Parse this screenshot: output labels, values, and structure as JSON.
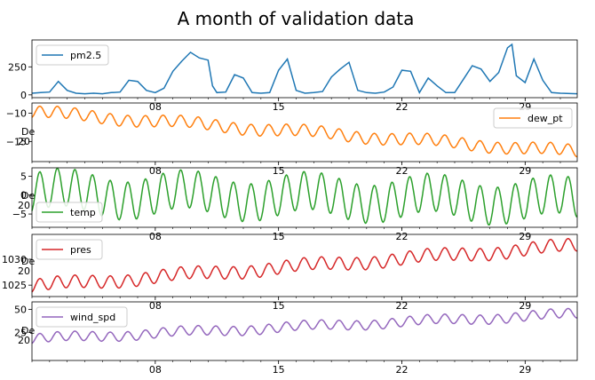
{
  "chart_data": {
    "type": "line",
    "title": "A month of validation data",
    "x_axis": {
      "type": "date",
      "range": [
        "2014-12-01",
        "2014-12-31T23:00"
      ],
      "tick_labels": [
        "08",
        "15",
        "22",
        "29"
      ],
      "tick_dates": [
        "2014-12-08",
        "2014-12-15",
        "2014-12-22",
        "2014-12-29"
      ],
      "overlap_label_fragments": [
        "De",
        "20"
      ]
    },
    "grid": false,
    "subplots": [
      {
        "name": "pm2.5",
        "color": "#1f77b4",
        "legend": "top-left",
        "ylim": [
          -25,
          490
        ],
        "yticks": [
          0,
          250
        ],
        "ytick_labels": [
          "0",
          "250"
        ],
        "points": [
          [
            "2014-12-01T00:00",
            15
          ],
          [
            "2014-12-01T12:00",
            20
          ],
          [
            "2014-12-02T00:00",
            25
          ],
          [
            "2014-12-02T12:00",
            120
          ],
          [
            "2014-12-03T00:00",
            40
          ],
          [
            "2014-12-03T12:00",
            15
          ],
          [
            "2014-12-04T00:00",
            10
          ],
          [
            "2014-12-04T12:00",
            15
          ],
          [
            "2014-12-05T00:00",
            10
          ],
          [
            "2014-12-05T12:00",
            20
          ],
          [
            "2014-12-06T00:00",
            25
          ],
          [
            "2014-12-06T12:00",
            130
          ],
          [
            "2014-12-07T00:00",
            120
          ],
          [
            "2014-12-07T12:00",
            40
          ],
          [
            "2014-12-08T00:00",
            20
          ],
          [
            "2014-12-08T12:00",
            60
          ],
          [
            "2014-12-09T00:00",
            210
          ],
          [
            "2014-12-09T12:00",
            300
          ],
          [
            "2014-12-10T00:00",
            380
          ],
          [
            "2014-12-10T12:00",
            330
          ],
          [
            "2014-12-11T00:00",
            310
          ],
          [
            "2014-12-11T06:00",
            80
          ],
          [
            "2014-12-11T12:00",
            20
          ],
          [
            "2014-12-12T00:00",
            25
          ],
          [
            "2014-12-12T12:00",
            180
          ],
          [
            "2014-12-13T00:00",
            150
          ],
          [
            "2014-12-13T12:00",
            20
          ],
          [
            "2014-12-14T00:00",
            15
          ],
          [
            "2014-12-14T12:00",
            20
          ],
          [
            "2014-12-15T00:00",
            220
          ],
          [
            "2014-12-15T12:00",
            320
          ],
          [
            "2014-12-16T00:00",
            40
          ],
          [
            "2014-12-16T12:00",
            15
          ],
          [
            "2014-12-17T00:00",
            20
          ],
          [
            "2014-12-17T12:00",
            30
          ],
          [
            "2014-12-18T00:00",
            160
          ],
          [
            "2014-12-18T12:00",
            230
          ],
          [
            "2014-12-19T00:00",
            290
          ],
          [
            "2014-12-19T12:00",
            40
          ],
          [
            "2014-12-20T00:00",
            20
          ],
          [
            "2014-12-20T12:00",
            15
          ],
          [
            "2014-12-21T00:00",
            25
          ],
          [
            "2014-12-21T12:00",
            70
          ],
          [
            "2014-12-22T00:00",
            220
          ],
          [
            "2014-12-22T12:00",
            210
          ],
          [
            "2014-12-23T00:00",
            20
          ],
          [
            "2014-12-23T12:00",
            150
          ],
          [
            "2014-12-24T00:00",
            80
          ],
          [
            "2014-12-24T12:00",
            20
          ],
          [
            "2014-12-25T00:00",
            20
          ],
          [
            "2014-12-25T12:00",
            140
          ],
          [
            "2014-12-26T00:00",
            260
          ],
          [
            "2014-12-26T12:00",
            230
          ],
          [
            "2014-12-27T00:00",
            120
          ],
          [
            "2014-12-27T12:00",
            200
          ],
          [
            "2014-12-28T00:00",
            420
          ],
          [
            "2014-12-28T06:00",
            450
          ],
          [
            "2014-12-28T12:00",
            170
          ],
          [
            "2014-12-29T00:00",
            110
          ],
          [
            "2014-12-29T12:00",
            320
          ],
          [
            "2014-12-30T00:00",
            130
          ],
          [
            "2014-12-30T12:00",
            20
          ],
          [
            "2014-12-31T00:00",
            15
          ],
          [
            "2014-12-31T23:00",
            10
          ]
        ]
      },
      {
        "name": "dew_pt",
        "color": "#ff7f0e",
        "legend": "top-right",
        "ylim": [
          -18.5,
          -8.2
        ],
        "yticks": [
          -10,
          -15
        ],
        "ytick_labels": [
          "−10",
          "−15"
        ],
        "trend": {
          "start": -9.8,
          "end": -16.8
        },
        "daily_amplitude": 1.0,
        "cycle_period_days": 1
      },
      {
        "name": "temp",
        "color": "#2ca02c",
        "legend": "bottom-left",
        "ylim": [
          -8.5,
          7.2
        ],
        "yticks": [
          5,
          0,
          -5
        ],
        "ytick_labels": [
          "5",
          "0",
          "−5"
        ],
        "trend": {
          "start": 0.5,
          "end": -1.5
        },
        "daily_amplitude": 5.0,
        "cycle_period_days": 1
      },
      {
        "name": "pres",
        "color": "#d62728",
        "legend": "top-left",
        "ylim": [
          1022.8,
          1034.8
        ],
        "yticks": [
          1030,
          1025
        ],
        "ytick_labels": [
          "1030",
          "1025"
        ],
        "trend": {
          "start": 1024.8,
          "end": 1032.6
        },
        "daily_amplitude": 1.2,
        "cycle_period_days": 1
      },
      {
        "name": "wind_spd",
        "color": "#9467bd",
        "legend": "top-left",
        "ylim": [
          -5,
          58
        ],
        "yticks": [
          50,
          25
        ],
        "ytick_labels": [
          "50",
          "25"
        ],
        "trend": {
          "start": 18,
          "end": 45
        },
        "daily_amplitude": 5.0,
        "cycle_period_days": 1
      }
    ]
  }
}
